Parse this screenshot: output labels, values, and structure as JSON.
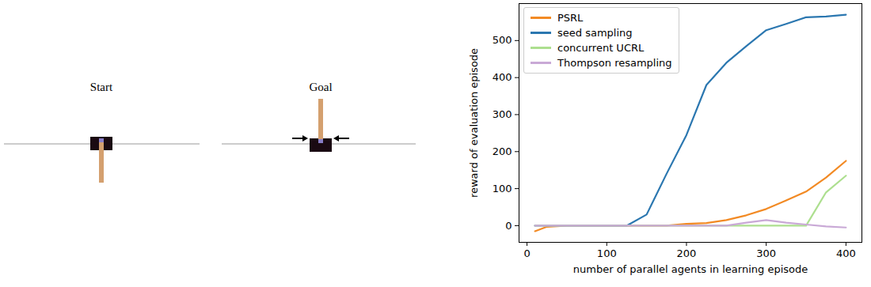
{
  "chart_data": {
    "type": "line",
    "x_label": "number of parallel agents in learning episode",
    "y_label": "reward of evaluation episode",
    "x": [
      10,
      25,
      50,
      75,
      100,
      125,
      150,
      175,
      200,
      225,
      250,
      275,
      300,
      325,
      350,
      375,
      400
    ],
    "series": [
      {
        "name": "PSRL",
        "color": "#f28a24",
        "values": [
          -15,
          -3,
          0,
          0,
          0,
          0,
          0,
          0,
          5,
          7,
          15,
          28,
          45,
          68,
          92,
          130,
          175
        ]
      },
      {
        "name": "seed sampling",
        "color": "#2b77b0",
        "values": [
          0,
          0,
          0,
          0,
          0,
          0,
          30,
          140,
          245,
          380,
          440,
          485,
          528,
          545,
          563,
          565,
          570
        ]
      },
      {
        "name": "concurrent UCRL",
        "color": "#addf8f",
        "values": [
          0,
          0,
          0,
          0,
          0,
          0,
          0,
          0,
          0,
          0,
          0,
          0,
          0,
          0,
          0,
          90,
          135
        ]
      },
      {
        "name": "Thompson resampling",
        "color": "#c9a9d6",
        "values": [
          0,
          0,
          0,
          0,
          0,
          0,
          0,
          0,
          0,
          0,
          0,
          8,
          15,
          8,
          3,
          -2,
          -5
        ]
      }
    ],
    "xlim": [
      -10,
      420
    ],
    "xticks": [
      0,
      100,
      200,
      300,
      400
    ],
    "ylim": [
      -45,
      600
    ],
    "yticks": [
      0,
      100,
      200,
      300,
      400,
      500
    ],
    "grid": false,
    "legend": "upper left"
  },
  "illustration": {
    "panels": [
      "Start",
      "Goal"
    ]
  }
}
